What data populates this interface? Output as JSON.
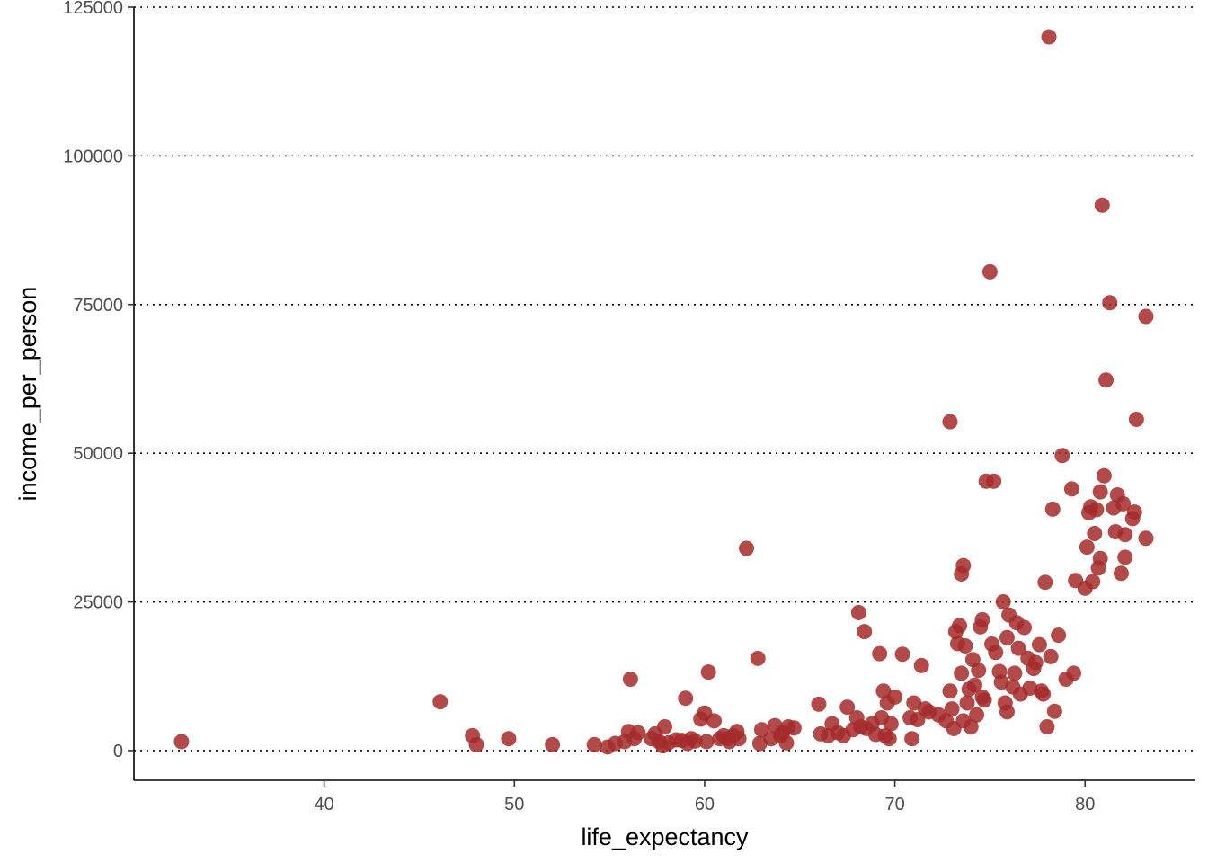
{
  "chart_data": {
    "type": "scatter",
    "xlabel": "life_expectancy",
    "ylabel": "income_per_person",
    "xlim": [
      30,
      85.8
    ],
    "ylim": [
      -5000,
      125000
    ],
    "x_ticks": [
      40,
      50,
      60,
      70,
      80
    ],
    "y_ticks": [
      0,
      25000,
      50000,
      75000,
      100000,
      125000
    ],
    "x_tick_labels": [
      "40",
      "50",
      "60",
      "70",
      "80"
    ],
    "y_tick_labels": [
      "0",
      "25000",
      "50000",
      "75000",
      "100000",
      "125000"
    ],
    "grid": "horizontal-dotted",
    "point_color": "#a52a2a",
    "point_opacity": 0.85,
    "points": [
      [
        32.5,
        1500
      ],
      [
        46.1,
        8200
      ],
      [
        47.8,
        2500
      ],
      [
        48.0,
        1000
      ],
      [
        49.7,
        2000
      ],
      [
        52.0,
        1000
      ],
      [
        54.2,
        1000
      ],
      [
        54.9,
        600
      ],
      [
        55.3,
        1200
      ],
      [
        55.8,
        1500
      ],
      [
        56.0,
        3200
      ],
      [
        56.1,
        12000
      ],
      [
        56.3,
        2000
      ],
      [
        56.5,
        3000
      ],
      [
        57.2,
        2000
      ],
      [
        57.4,
        2800
      ],
      [
        57.6,
        1500
      ],
      [
        57.8,
        800
      ],
      [
        57.9,
        4000
      ],
      [
        58.1,
        1300
      ],
      [
        58.5,
        1800
      ],
      [
        58.8,
        1700
      ],
      [
        59.0,
        8800
      ],
      [
        59.1,
        1200
      ],
      [
        59.3,
        2000
      ],
      [
        59.5,
        1600
      ],
      [
        59.8,
        5300
      ],
      [
        60.0,
        6300
      ],
      [
        60.1,
        1500
      ],
      [
        60.2,
        13200
      ],
      [
        60.5,
        5000
      ],
      [
        60.8,
        2000
      ],
      [
        61.0,
        2500
      ],
      [
        61.2,
        2000
      ],
      [
        61.3,
        1500
      ],
      [
        61.5,
        2500
      ],
      [
        61.7,
        3200
      ],
      [
        61.8,
        2000
      ],
      [
        62.2,
        34000
      ],
      [
        62.8,
        15500
      ],
      [
        62.9,
        1200
      ],
      [
        63.0,
        3500
      ],
      [
        63.5,
        2000
      ],
      [
        63.7,
        4200
      ],
      [
        64.0,
        2500
      ],
      [
        64.1,
        3000
      ],
      [
        64.3,
        1300
      ],
      [
        64.4,
        4000
      ],
      [
        64.7,
        3800
      ],
      [
        66.0,
        7800
      ],
      [
        66.1,
        2800
      ],
      [
        66.5,
        2500
      ],
      [
        66.7,
        4500
      ],
      [
        67.0,
        3000
      ],
      [
        67.3,
        2500
      ],
      [
        67.5,
        7300
      ],
      [
        67.8,
        3500
      ],
      [
        68.0,
        5500
      ],
      [
        68.1,
        23200
      ],
      [
        68.2,
        4000
      ],
      [
        68.4,
        20000
      ],
      [
        68.5,
        3700
      ],
      [
        68.8,
        4500
      ],
      [
        69.0,
        2700
      ],
      [
        69.2,
        16300
      ],
      [
        69.3,
        5500
      ],
      [
        69.4,
        10000
      ],
      [
        69.5,
        2500
      ],
      [
        69.6,
        8000
      ],
      [
        69.7,
        2000
      ],
      [
        69.8,
        4500
      ],
      [
        70.0,
        9000
      ],
      [
        70.4,
        16200
      ],
      [
        70.8,
        5500
      ],
      [
        70.9,
        2000
      ],
      [
        71.0,
        8000
      ],
      [
        71.2,
        5200
      ],
      [
        71.4,
        14300
      ],
      [
        71.6,
        7000
      ],
      [
        71.8,
        6500
      ],
      [
        72.3,
        6000
      ],
      [
        72.7,
        5000
      ],
      [
        72.9,
        55300
      ],
      [
        72.9,
        10000
      ],
      [
        73.0,
        7000
      ],
      [
        73.1,
        3700
      ],
      [
        73.2,
        20000
      ],
      [
        73.3,
        18000
      ],
      [
        73.4,
        21000
      ],
      [
        73.5,
        29700
      ],
      [
        73.5,
        13000
      ],
      [
        73.6,
        5000
      ],
      [
        73.6,
        31100
      ],
      [
        73.7,
        17600
      ],
      [
        73.8,
        8000
      ],
      [
        73.9,
        10300
      ],
      [
        74.0,
        4000
      ],
      [
        74.1,
        15300
      ],
      [
        74.2,
        11000
      ],
      [
        74.3,
        6000
      ],
      [
        74.4,
        13500
      ],
      [
        74.5,
        20800
      ],
      [
        74.6,
        22000
      ],
      [
        74.6,
        9000
      ],
      [
        74.7,
        8500
      ],
      [
        74.8,
        45300
      ],
      [
        75.0,
        80500
      ],
      [
        75.1,
        17900
      ],
      [
        75.2,
        45300
      ],
      [
        75.3,
        16500
      ],
      [
        75.5,
        13300
      ],
      [
        75.6,
        11500
      ],
      [
        75.7,
        25000
      ],
      [
        75.8,
        8000
      ],
      [
        75.9,
        6500
      ],
      [
        75.9,
        19000
      ],
      [
        76.0,
        22800
      ],
      [
        76.2,
        10700
      ],
      [
        76.3,
        13000
      ],
      [
        76.4,
        21500
      ],
      [
        76.5,
        17200
      ],
      [
        76.6,
        9500
      ],
      [
        76.8,
        20700
      ],
      [
        77.0,
        15500
      ],
      [
        77.1,
        10500
      ],
      [
        77.3,
        13800
      ],
      [
        77.4,
        14800
      ],
      [
        77.6,
        17800
      ],
      [
        77.7,
        10000
      ],
      [
        77.8,
        9500
      ],
      [
        77.9,
        28300
      ],
      [
        78.0,
        4000
      ],
      [
        78.1,
        120000
      ],
      [
        78.2,
        15800
      ],
      [
        78.3,
        40600
      ],
      [
        78.4,
        6600
      ],
      [
        78.6,
        19400
      ],
      [
        78.8,
        49600
      ],
      [
        79.0,
        12000
      ],
      [
        79.3,
        44000
      ],
      [
        79.4,
        13000
      ],
      [
        79.5,
        28600
      ],
      [
        80.0,
        27300
      ],
      [
        80.1,
        34200
      ],
      [
        80.2,
        40000
      ],
      [
        80.3,
        41000
      ],
      [
        80.4,
        28400
      ],
      [
        80.5,
        36500
      ],
      [
        80.6,
        40500
      ],
      [
        80.7,
        30700
      ],
      [
        80.8,
        32300
      ],
      [
        80.8,
        43500
      ],
      [
        80.9,
        91700
      ],
      [
        81.0,
        46200
      ],
      [
        81.1,
        62300
      ],
      [
        81.3,
        75300
      ],
      [
        81.5,
        40800
      ],
      [
        81.6,
        36800
      ],
      [
        81.7,
        43000
      ],
      [
        81.9,
        29800
      ],
      [
        82.0,
        41500
      ],
      [
        82.1,
        32500
      ],
      [
        82.1,
        36300
      ],
      [
        82.5,
        39000
      ],
      [
        82.6,
        40100
      ],
      [
        82.7,
        55700
      ],
      [
        83.2,
        73000
      ],
      [
        83.2,
        35700
      ]
    ]
  }
}
